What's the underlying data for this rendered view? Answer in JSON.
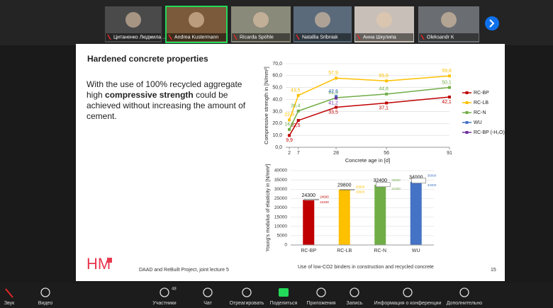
{
  "participants": [
    {
      "name": "Цитаненко Людмила ..."
    },
    {
      "name": "Andrea Kustermann"
    },
    {
      "name": "Ricarda Spöhle"
    },
    {
      "name": "Natallia Sribniak"
    },
    {
      "name": "Анна Шкулипа"
    },
    {
      "name": "Oleksandr K"
    }
  ],
  "slide": {
    "title": "Hardened concrete properties",
    "text_before": "With the use of 100% recycled aggregate high ",
    "text_bold": "compressive strength",
    "text_after": " could be achieved without increasing the amount of cement.",
    "logo": "HM",
    "footer_left": "DAAD and ReBuilt Project, joint lecture 5",
    "footer_center": "Use of low-CO2 binders in construction and recycled concrete",
    "page_number": 15
  },
  "chart_data": [
    {
      "type": "line",
      "x_label": "Concrete age in [d]",
      "y_label": "Compressive strength in [N/mm²]",
      "x": [
        2,
        7,
        28,
        56,
        91
      ],
      "xlim": [
        0,
        91
      ],
      "xticks": [
        2,
        7,
        28,
        56,
        91
      ],
      "ylim": [
        0,
        70
      ],
      "yticks": [
        {
          "value": 0,
          "label": "0,0"
        },
        {
          "value": 10,
          "label": "10,0"
        },
        {
          "value": 20,
          "label": "20,0"
        },
        {
          "value": 30,
          "label": "30,0"
        },
        {
          "value": 40,
          "label": "40,0"
        },
        {
          "value": 50,
          "label": "50,0"
        },
        {
          "value": 60,
          "label": "60,0"
        },
        {
          "value": 70,
          "label": "70,0"
        }
      ],
      "grid": true,
      "legend": "right",
      "series": [
        {
          "name": "RC-BP",
          "color": "#c00000",
          "values": [
            9.9,
            22.5,
            33.5,
            37.1,
            42.1
          ],
          "value_labels": [
            "9,9",
            "22,5",
            "33,5",
            "37,1",
            "42,1"
          ]
        },
        {
          "name": "RC-LB",
          "color": "#ffc000",
          "values": [
            22.9,
            43.5,
            57.9,
            55.6,
            59.8
          ],
          "value_labels": [
            "22,9",
            "43,5",
            "57,9",
            "55,6",
            "59,8"
          ]
        },
        {
          "name": "RC-N",
          "color": "#70ad47",
          "values": [
            14.9,
            30.4,
            41.5,
            44.6,
            50.1
          ],
          "value_labels": [
            "14,9",
            "30,4",
            "41,5",
            "44,6",
            "50,1"
          ]
        },
        {
          "name": "WU",
          "color": "#4472c4",
          "values": [
            null,
            null,
            42.6,
            null,
            null
          ],
          "value_labels": [
            null,
            null,
            "42,6",
            null,
            null
          ]
        },
        {
          "name": "RC-BP (-H₂O)",
          "color": "#7030a0",
          "values": [
            null,
            null,
            41.2,
            null,
            null
          ],
          "value_labels": [
            null,
            null,
            "41,2",
            null,
            null
          ]
        }
      ]
    },
    {
      "type": "bar",
      "y_label": "Young's modulus of elasticity in [N/mm²]",
      "categories": [
        "RC-BP",
        "RC-LB",
        "RC-N",
        "WU"
      ],
      "values": [
        24300,
        29800,
        32400,
        34000
      ],
      "colors": [
        "#c00000",
        "#ffc000",
        "#70ad47",
        "#4472c4"
      ],
      "range_max": [
        24600,
        30000,
        33600,
        36000
      ],
      "range_min": [
        24100,
        29600,
        31300,
        33300
      ],
      "ylim": [
        0,
        40000
      ],
      "yticks": [
        0,
        5000,
        10000,
        15000,
        20000,
        25000,
        30000,
        35000,
        40000
      ],
      "grid": true
    }
  ],
  "toolbar": {
    "participant_count": 48,
    "items": [
      {
        "label": "Звук"
      },
      {
        "label": "Видео"
      },
      {
        "label": "Участники"
      },
      {
        "label": "Чат"
      },
      {
        "label": "Отреагировать"
      },
      {
        "label": "Поделиться"
      },
      {
        "label": "Приложения"
      },
      {
        "label": "Запись"
      },
      {
        "label": "Информация о конференции"
      },
      {
        "label": "Дополнительно"
      }
    ]
  }
}
